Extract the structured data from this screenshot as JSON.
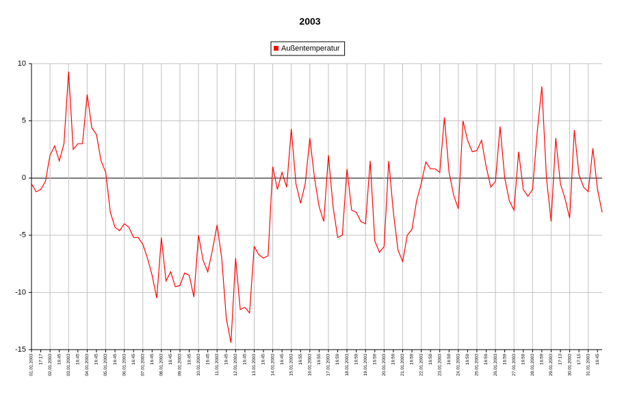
{
  "chart_data": {
    "type": "line",
    "title": "2003",
    "categories": [
      "01.01.2003",
      null,
      "17:17",
      null,
      "02.01.2003",
      null,
      "16:45",
      null,
      "03.01.2003",
      null,
      "16:45",
      null,
      "04.01.2003",
      null,
      "16:45",
      null,
      "05.01.2003",
      null,
      "16:45",
      null,
      "06.01.2003",
      null,
      "16:45",
      null,
      "07.01.2003",
      null,
      "16:45",
      null,
      "08.01.2003",
      null,
      "16:45",
      null,
      "09.01.2003",
      null,
      "16:45",
      null,
      "10.01.2003",
      null,
      "16:45",
      null,
      "11.01.2003",
      null,
      "16:45",
      null,
      "12.01.2003",
      null,
      "16:45",
      null,
      "13.01.2003",
      null,
      "16:45",
      null,
      "14.01.2003",
      null,
      "16:45",
      null,
      "15.01.2003",
      null,
      "16:55",
      null,
      "16.01.2003",
      null,
      "16:55",
      null,
      "17.01.2003",
      null,
      "16:59",
      null,
      "18.01.2003",
      null,
      "16:59",
      null,
      "19.01.2003",
      null,
      "16:59",
      null,
      "20.01.2003",
      null,
      "16:59",
      null,
      "21.01.2003",
      null,
      "16:59",
      null,
      "22.01.2003",
      null,
      "16:59",
      null,
      "23.01.2003",
      null,
      "16:59",
      null,
      "24.01.2003",
      null,
      "16:59",
      null,
      "25.01.2003",
      null,
      "16:59",
      null,
      "26.01.2003",
      null,
      "16:59",
      null,
      "27.01.2003",
      null,
      "16:59",
      null,
      "28.01.2003",
      null,
      "16:59",
      null,
      "29.01.2003",
      null,
      "17:13",
      null,
      "30.01.2003",
      null,
      "17:15",
      null,
      "31.01.2003",
      null,
      "16:45",
      null
    ],
    "series": [
      {
        "name": "Außentemperatur",
        "color": "#ff0000",
        "values": [
          -0.5,
          -1.2,
          -1,
          -0.3,
          2,
          2.8,
          1.5,
          3,
          9.3,
          2.5,
          3,
          3,
          7.3,
          4.4,
          3.8,
          1.5,
          0.5,
          -3,
          -4.3,
          -4.6,
          -4,
          -4.3,
          -5.2,
          -5.2,
          -5.8,
          -7,
          -8.5,
          -10.5,
          -5.2,
          -9,
          -8.2,
          -9.5,
          -9.4,
          -8.3,
          -8.5,
          -10.4,
          -5,
          -7.2,
          -8.2,
          -6.3,
          -4.1,
          -7,
          -12.3,
          -14.4,
          -7,
          -11.5,
          -11.3,
          -11.8,
          -6,
          -6.7,
          -7,
          -6.8,
          1,
          -1,
          0.5,
          -0.8,
          4.3,
          -0.5,
          -2.2,
          -0.5,
          3.5,
          0,
          -2.5,
          -3.8,
          2,
          -2.5,
          -5.2,
          -5,
          0.8,
          -2.8,
          -3,
          -3.8,
          -4,
          1.5,
          -5.5,
          -6.5,
          -6,
          1.5,
          -3,
          -6.3,
          -7.3,
          -5,
          -4.5,
          -2,
          -0.5,
          1.4,
          0.8,
          0.8,
          0.5,
          5.3,
          0.5,
          -1.5,
          -2.7,
          5,
          3.3,
          2.3,
          2.4,
          3.3,
          1,
          -0.8,
          -0.3,
          4.5,
          0,
          -2,
          -2.8,
          2.3,
          -1,
          -1.6,
          -1,
          4,
          8,
          0,
          -3.8,
          3.5,
          -0.5,
          -1.8,
          -3.5,
          4.2,
          0.3,
          -0.8,
          -1.2,
          2.6,
          -1,
          -3
        ]
      }
    ],
    "ylim": [
      -15,
      10
    ],
    "yticks": [
      -15,
      -10,
      -5,
      0,
      5,
      10
    ],
    "grid": true
  }
}
